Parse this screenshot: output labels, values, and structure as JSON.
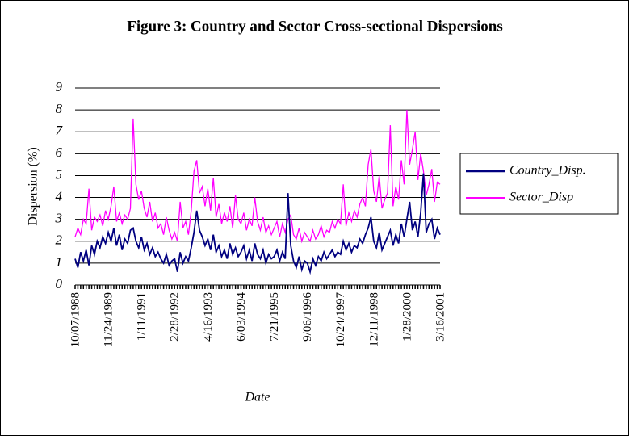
{
  "chart_data": {
    "type": "line",
    "title": "Figure 3: Country and Sector Cross-sectional Dispersions",
    "y_label": "Dispersion (%)",
    "x_label": "Date",
    "categories": [
      "10/07/1988",
      null,
      null,
      null,
      null,
      null,
      null,
      null,
      null,
      null,
      null,
      null,
      "11/24/1989",
      null,
      null,
      null,
      null,
      null,
      null,
      null,
      null,
      null,
      null,
      null,
      "1/11/1991",
      null,
      null,
      null,
      null,
      null,
      null,
      null,
      null,
      null,
      null,
      null,
      "2/28/1992",
      null,
      null,
      null,
      null,
      null,
      null,
      null,
      null,
      null,
      null,
      null,
      "4/16/1993",
      null,
      null,
      null,
      null,
      null,
      null,
      null,
      null,
      null,
      null,
      null,
      "6/03/1994",
      null,
      null,
      null,
      null,
      null,
      null,
      null,
      null,
      null,
      null,
      null,
      "7/21/1995",
      null,
      null,
      null,
      null,
      null,
      null,
      null,
      null,
      null,
      null,
      null,
      "9/06/1996",
      null,
      null,
      null,
      null,
      null,
      null,
      null,
      null,
      null,
      null,
      null,
      "10/24/1997",
      null,
      null,
      null,
      null,
      null,
      null,
      null,
      null,
      null,
      null,
      null,
      "12/11/1998",
      null,
      null,
      null,
      null,
      null,
      null,
      null,
      null,
      null,
      null,
      null,
      "1/28/2000",
      null,
      null,
      null,
      null,
      null,
      null,
      null,
      null,
      null,
      null,
      null,
      "3/16/2001"
    ],
    "series": [
      {
        "name": "Country_Disp.",
        "color": "#000080",
        "values": [
          1.2,
          0.8,
          1.5,
          1.1,
          1.6,
          0.9,
          1.8,
          1.4,
          2.0,
          1.7,
          2.2,
          1.9,
          2.4,
          2.0,
          2.6,
          1.8,
          2.3,
          1.6,
          2.1,
          1.9,
          2.5,
          2.6,
          2.0,
          1.7,
          2.2,
          1.6,
          1.9,
          1.4,
          1.7,
          1.3,
          1.5,
          1.2,
          1.0,
          1.4,
          0.9,
          1.1,
          1.2,
          0.6,
          1.5,
          1.0,
          1.3,
          1.1,
          1.7,
          2.4,
          3.4,
          2.5,
          2.2,
          1.8,
          2.1,
          1.6,
          2.3,
          1.5,
          1.8,
          1.3,
          1.6,
          1.2,
          1.9,
          1.4,
          1.7,
          1.3,
          1.5,
          1.8,
          1.2,
          1.6,
          1.1,
          1.9,
          1.4,
          1.2,
          1.6,
          1.0,
          1.4,
          1.2,
          1.3,
          1.6,
          1.1,
          1.5,
          1.2,
          4.2,
          1.8,
          1.1,
          0.8,
          1.3,
          0.7,
          1.1,
          1.0,
          0.6,
          1.2,
          0.9,
          1.3,
          1.1,
          1.5,
          1.2,
          1.4,
          1.6,
          1.3,
          1.5,
          1.4,
          2.0,
          1.6,
          1.9,
          1.5,
          1.8,
          1.7,
          2.1,
          1.9,
          2.3,
          2.6,
          3.1,
          2.0,
          1.7,
          2.4,
          1.6,
          1.9,
          2.2,
          2.5,
          1.8,
          2.3,
          1.9,
          2.8,
          2.2,
          3.0,
          3.8,
          2.5,
          2.9,
          2.2,
          3.3,
          5.1,
          2.4,
          2.8,
          3.0,
          2.1,
          2.6,
          2.3
        ]
      },
      {
        "name": "Sector_Disp",
        "color": "#ff00ff",
        "values": [
          2.2,
          2.6,
          2.3,
          3.0,
          2.8,
          4.4,
          2.5,
          3.1,
          2.9,
          3.2,
          2.7,
          3.4,
          3.0,
          3.6,
          4.5,
          2.9,
          3.3,
          2.8,
          3.2,
          3.0,
          3.5,
          7.6,
          4.6,
          3.9,
          4.3,
          3.5,
          3.1,
          3.8,
          2.9,
          3.3,
          2.6,
          2.8,
          2.3,
          3.1,
          2.5,
          2.1,
          2.4,
          2.0,
          3.8,
          2.6,
          2.9,
          2.3,
          3.4,
          5.2,
          5.7,
          4.2,
          4.5,
          3.6,
          4.4,
          3.4,
          4.9,
          3.1,
          3.7,
          2.8,
          3.3,
          2.9,
          3.6,
          2.6,
          4.1,
          3.0,
          2.8,
          3.3,
          2.5,
          3.0,
          2.7,
          4.0,
          2.9,
          2.5,
          3.1,
          2.4,
          2.7,
          2.3,
          2.6,
          2.9,
          2.2,
          2.8,
          2.4,
          3.0,
          3.2,
          2.3,
          2.1,
          2.6,
          2.0,
          2.4,
          2.2,
          2.0,
          2.5,
          2.1,
          2.3,
          2.7,
          2.2,
          2.5,
          2.4,
          2.9,
          2.6,
          3.0,
          2.8,
          4.6,
          2.7,
          3.3,
          2.9,
          3.4,
          3.1,
          3.7,
          4.0,
          3.6,
          5.5,
          6.2,
          4.3,
          3.8,
          5.0,
          3.5,
          3.9,
          4.2,
          7.3,
          3.6,
          4.5,
          3.9,
          5.7,
          4.6,
          8.0,
          5.5,
          6.2,
          7.0,
          4.8,
          6.0,
          5.2,
          4.1,
          4.6,
          5.3,
          3.8,
          4.7,
          4.6
        ]
      }
    ],
    "ylim": [
      0,
      9
    ],
    "yticks": [
      0,
      1,
      2,
      3,
      4,
      5,
      6,
      7,
      8,
      9
    ],
    "grid": true,
    "legend": "right"
  }
}
